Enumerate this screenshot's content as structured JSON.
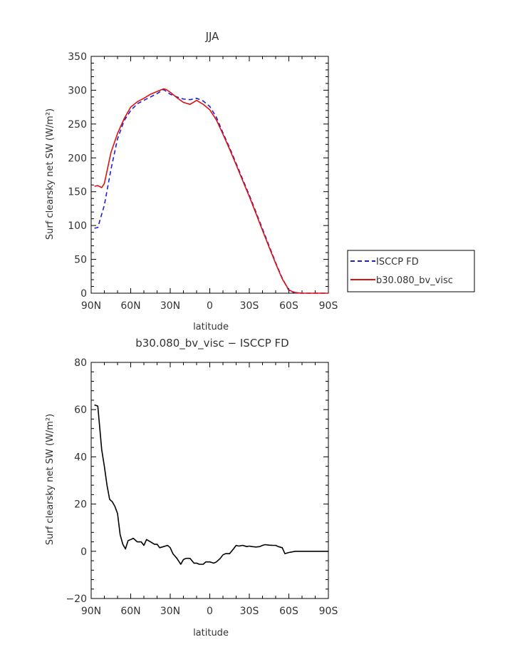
{
  "chart_data": [
    {
      "type": "line",
      "title": "JJA",
      "xlabel": "latitude",
      "ylabel": "Surf clearsky net SW (W/m²)",
      "ylim": [
        0,
        350
      ],
      "xlim": [
        90,
        -90
      ],
      "y_ticks": [
        0,
        50,
        100,
        150,
        200,
        250,
        300,
        350
      ],
      "y_tick_labels": [
        "0",
        "50",
        "100",
        "150",
        "200",
        "250",
        "300",
        "350"
      ],
      "x_ticks": [
        90,
        60,
        30,
        0,
        -30,
        -60,
        -90
      ],
      "x_tick_labels": [
        "90N",
        "60N",
        "30N",
        "0",
        "30S",
        "60S",
        "90S"
      ],
      "grid": false,
      "legend_position": "right",
      "series": [
        {
          "name": "ISCCP FD",
          "color": "#1f1fd0",
          "style": "dashed",
          "x": [
            87.5,
            85,
            80,
            75,
            70,
            65,
            60,
            55,
            50,
            45,
            40,
            35,
            30,
            25,
            20,
            15,
            10,
            5,
            0,
            -5,
            -10,
            -15,
            -20,
            -25,
            -30,
            -35,
            -40,
            -45,
            -50,
            -55,
            -60,
            -62,
            -65,
            -70,
            -75,
            -80,
            -85,
            -90
          ],
          "y": [
            96,
            97,
            130,
            183,
            228,
            255,
            270,
            280,
            285,
            290,
            295,
            301,
            294,
            290,
            287,
            286,
            288,
            284,
            276,
            260,
            237,
            215,
            192,
            168,
            145,
            120,
            95,
            70,
            45,
            22,
            4,
            2,
            0.5,
            0,
            0,
            0,
            0,
            0
          ]
        },
        {
          "name": "b30.080_bv_visc",
          "color": "#e01010",
          "style": "solid",
          "x": [
            87.5,
            85,
            82,
            80,
            75,
            70,
            65,
            60,
            55,
            50,
            45,
            40,
            35,
            33,
            30,
            25,
            20,
            15,
            10,
            5,
            0,
            -5,
            -10,
            -15,
            -20,
            -25,
            -30,
            -35,
            -40,
            -45,
            -50,
            -55,
            -60,
            -62,
            -65,
            -70,
            -75,
            -80,
            -85,
            -90
          ],
          "y": [
            158,
            159,
            156,
            162,
            208,
            236,
            258,
            275,
            283,
            288,
            294,
            298,
            302,
            301,
            297,
            289,
            282,
            279,
            285,
            279,
            271,
            256,
            235,
            213,
            190,
            166,
            143,
            118,
            93,
            68,
            44,
            21,
            5,
            3,
            1,
            0,
            0,
            0,
            0,
            0
          ]
        }
      ]
    },
    {
      "type": "line",
      "title": "b30.080_bv_visc − ISCCP FD",
      "xlabel": "latitude",
      "ylabel": "Surf clearsky net SW (W/m²)",
      "ylim": [
        -20,
        80
      ],
      "xlim": [
        90,
        -90
      ],
      "y_ticks": [
        -20,
        0,
        20,
        40,
        60,
        80
      ],
      "y_tick_labels": [
        "−20",
        "0",
        "20",
        "40",
        "60",
        "80"
      ],
      "x_ticks": [
        90,
        60,
        30,
        0,
        -30,
        -60,
        -90
      ],
      "x_tick_labels": [
        "90N",
        "60N",
        "30N",
        "0",
        "30S",
        "60S",
        "90S"
      ],
      "grid": false,
      "series": [
        {
          "color": "#000000",
          "style": "solid",
          "x": [
            87.5,
            85,
            82,
            80,
            78,
            76,
            74,
            72,
            70,
            68,
            66,
            64,
            62,
            60,
            58,
            55,
            52,
            50,
            48,
            45,
            42,
            40,
            38,
            35,
            32,
            30,
            28,
            25,
            22,
            20,
            18,
            15,
            12,
            10,
            8,
            5,
            3,
            0,
            -3,
            -5,
            -8,
            -10,
            -12,
            -15,
            -18,
            -20,
            -22,
            -25,
            -28,
            -30,
            -32,
            -35,
            -38,
            -40,
            -42,
            -45,
            -48,
            -50,
            -52,
            -55,
            -57,
            -60,
            -62,
            -65,
            -70,
            -75,
            -80,
            -85,
            -90
          ],
          "y": [
            62,
            61.5,
            43,
            36,
            28,
            22,
            21,
            19,
            16,
            7,
            3,
            1,
            4.5,
            5,
            5.5,
            4,
            4,
            2.5,
            5,
            4,
            3,
            3,
            1.5,
            2,
            2.5,
            1.5,
            -1,
            -3,
            -5.5,
            -3.5,
            -3,
            -3,
            -5,
            -5,
            -5.5,
            -5.5,
            -4.5,
            -4.5,
            -5,
            -4.5,
            -3,
            -1.5,
            -1,
            -1,
            1,
            2.5,
            2.2,
            2.5,
            2,
            2.2,
            2,
            1.8,
            2,
            2.5,
            2.8,
            2.6,
            2.5,
            2.5,
            2,
            1.5,
            -1,
            -0.5,
            -0.3,
            0,
            0,
            0,
            0,
            0,
            0
          ]
        }
      ]
    }
  ]
}
